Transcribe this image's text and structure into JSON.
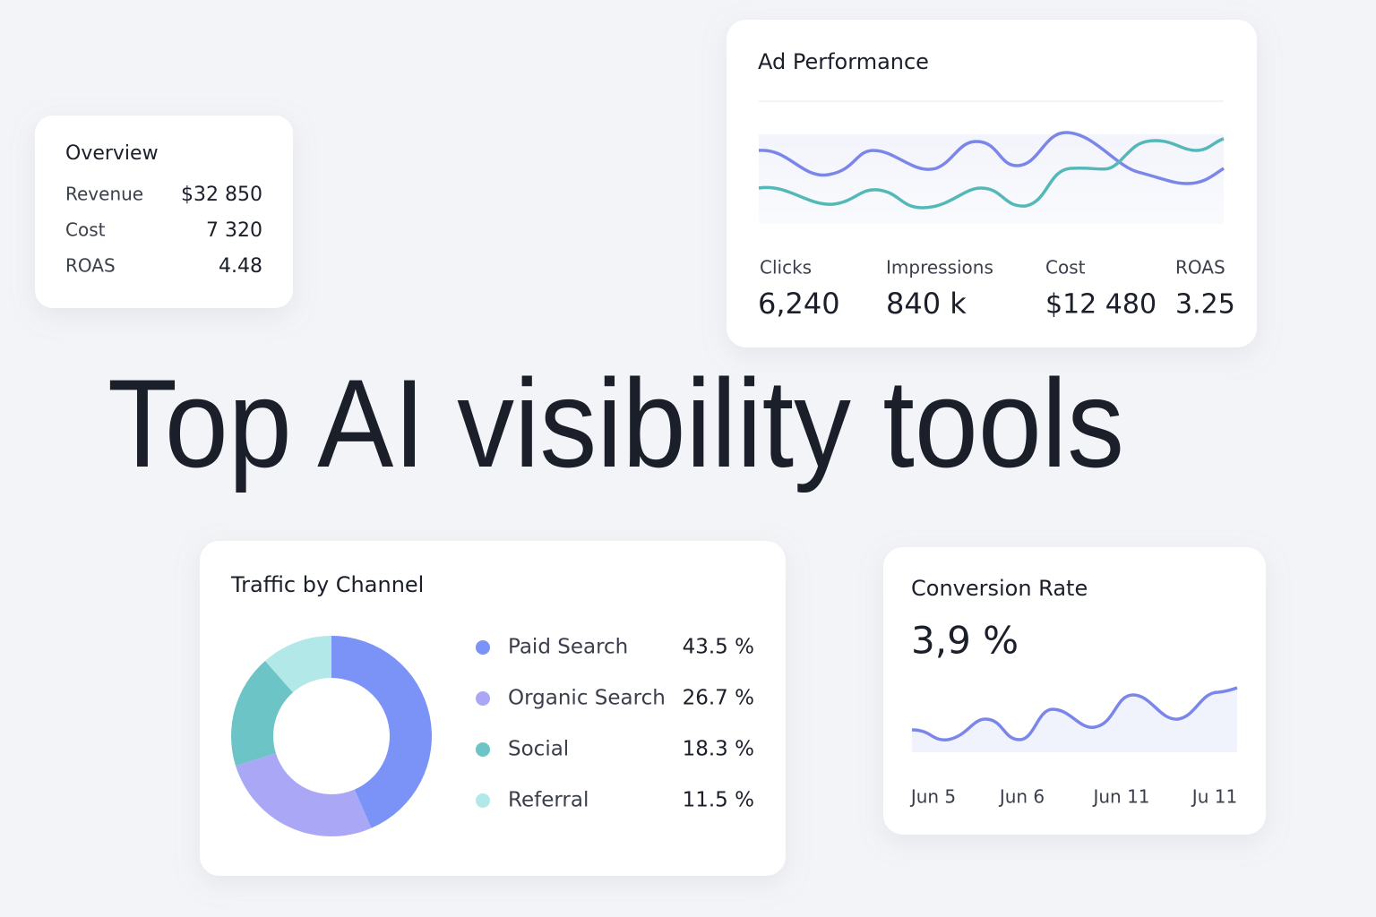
{
  "overview": {
    "title": "Overview",
    "rows": [
      {
        "label": "Revenue",
        "value": "$32 850"
      },
      {
        "label": "Cost",
        "value": "7 320"
      },
      {
        "label": "ROAS",
        "value": "4.48"
      }
    ]
  },
  "ad_performance": {
    "title": "Ad Performance",
    "stats": [
      {
        "label": "Clicks",
        "value": "6,240"
      },
      {
        "label": "Impressions",
        "value": "840 k"
      },
      {
        "label": "Cost",
        "value": "$12 480"
      },
      {
        "label": "ROAS",
        "value": "3.25"
      }
    ]
  },
  "headline": "Top AI visibility tools",
  "chart_data": {
    "type": "pie",
    "title": "Traffic by Channel",
    "categories": [
      "Paid Search",
      "Organic Search",
      "Social",
      "Referral"
    ],
    "values": [
      43.5,
      26.7,
      18.3,
      11.5
    ],
    "value_labels": [
      "43.5 %",
      "26.7 %",
      "18.3 %",
      "11.5 %"
    ],
    "colors": [
      "#7b93f7",
      "#aaa8f6",
      "#6cc4c6",
      "#b2e8e8"
    ]
  },
  "conversion": {
    "title": "Conversion Rate",
    "value": "3,9 %",
    "x_labels": [
      "Jun 5",
      "Jun 6",
      "Jun 11",
      "Ju 11"
    ]
  }
}
